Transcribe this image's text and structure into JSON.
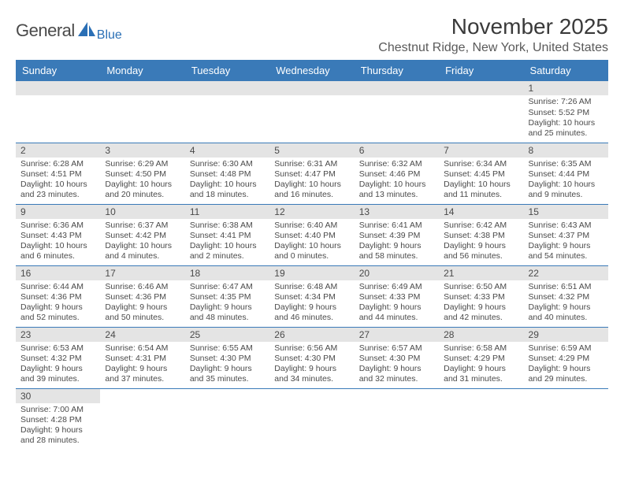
{
  "logo": {
    "word1": "General",
    "word2": "Blue"
  },
  "title": "November 2025",
  "location": "Chestnut Ridge, New York, United States",
  "colors": {
    "header_bg": "#3a7ab8",
    "header_fg": "#ffffff",
    "daynum_bg": "#e4e4e4",
    "text": "#4a4a4a",
    "row_border": "#3a7ab8",
    "logo_blue": "#2a6fb5"
  },
  "weekdays": [
    "Sunday",
    "Monday",
    "Tuesday",
    "Wednesday",
    "Thursday",
    "Friday",
    "Saturday"
  ],
  "weeks": [
    [
      null,
      null,
      null,
      null,
      null,
      null,
      {
        "n": "1",
        "sunrise": "Sunrise: 7:26 AM",
        "sunset": "Sunset: 5:52 PM",
        "daylight1": "Daylight: 10 hours",
        "daylight2": "and 25 minutes."
      }
    ],
    [
      {
        "n": "2",
        "sunrise": "Sunrise: 6:28 AM",
        "sunset": "Sunset: 4:51 PM",
        "daylight1": "Daylight: 10 hours",
        "daylight2": "and 23 minutes."
      },
      {
        "n": "3",
        "sunrise": "Sunrise: 6:29 AM",
        "sunset": "Sunset: 4:50 PM",
        "daylight1": "Daylight: 10 hours",
        "daylight2": "and 20 minutes."
      },
      {
        "n": "4",
        "sunrise": "Sunrise: 6:30 AM",
        "sunset": "Sunset: 4:48 PM",
        "daylight1": "Daylight: 10 hours",
        "daylight2": "and 18 minutes."
      },
      {
        "n": "5",
        "sunrise": "Sunrise: 6:31 AM",
        "sunset": "Sunset: 4:47 PM",
        "daylight1": "Daylight: 10 hours",
        "daylight2": "and 16 minutes."
      },
      {
        "n": "6",
        "sunrise": "Sunrise: 6:32 AM",
        "sunset": "Sunset: 4:46 PM",
        "daylight1": "Daylight: 10 hours",
        "daylight2": "and 13 minutes."
      },
      {
        "n": "7",
        "sunrise": "Sunrise: 6:34 AM",
        "sunset": "Sunset: 4:45 PM",
        "daylight1": "Daylight: 10 hours",
        "daylight2": "and 11 minutes."
      },
      {
        "n": "8",
        "sunrise": "Sunrise: 6:35 AM",
        "sunset": "Sunset: 4:44 PM",
        "daylight1": "Daylight: 10 hours",
        "daylight2": "and 9 minutes."
      }
    ],
    [
      {
        "n": "9",
        "sunrise": "Sunrise: 6:36 AM",
        "sunset": "Sunset: 4:43 PM",
        "daylight1": "Daylight: 10 hours",
        "daylight2": "and 6 minutes."
      },
      {
        "n": "10",
        "sunrise": "Sunrise: 6:37 AM",
        "sunset": "Sunset: 4:42 PM",
        "daylight1": "Daylight: 10 hours",
        "daylight2": "and 4 minutes."
      },
      {
        "n": "11",
        "sunrise": "Sunrise: 6:38 AM",
        "sunset": "Sunset: 4:41 PM",
        "daylight1": "Daylight: 10 hours",
        "daylight2": "and 2 minutes."
      },
      {
        "n": "12",
        "sunrise": "Sunrise: 6:40 AM",
        "sunset": "Sunset: 4:40 PM",
        "daylight1": "Daylight: 10 hours",
        "daylight2": "and 0 minutes."
      },
      {
        "n": "13",
        "sunrise": "Sunrise: 6:41 AM",
        "sunset": "Sunset: 4:39 PM",
        "daylight1": "Daylight: 9 hours",
        "daylight2": "and 58 minutes."
      },
      {
        "n": "14",
        "sunrise": "Sunrise: 6:42 AM",
        "sunset": "Sunset: 4:38 PM",
        "daylight1": "Daylight: 9 hours",
        "daylight2": "and 56 minutes."
      },
      {
        "n": "15",
        "sunrise": "Sunrise: 6:43 AM",
        "sunset": "Sunset: 4:37 PM",
        "daylight1": "Daylight: 9 hours",
        "daylight2": "and 54 minutes."
      }
    ],
    [
      {
        "n": "16",
        "sunrise": "Sunrise: 6:44 AM",
        "sunset": "Sunset: 4:36 PM",
        "daylight1": "Daylight: 9 hours",
        "daylight2": "and 52 minutes."
      },
      {
        "n": "17",
        "sunrise": "Sunrise: 6:46 AM",
        "sunset": "Sunset: 4:36 PM",
        "daylight1": "Daylight: 9 hours",
        "daylight2": "and 50 minutes."
      },
      {
        "n": "18",
        "sunrise": "Sunrise: 6:47 AM",
        "sunset": "Sunset: 4:35 PM",
        "daylight1": "Daylight: 9 hours",
        "daylight2": "and 48 minutes."
      },
      {
        "n": "19",
        "sunrise": "Sunrise: 6:48 AM",
        "sunset": "Sunset: 4:34 PM",
        "daylight1": "Daylight: 9 hours",
        "daylight2": "and 46 minutes."
      },
      {
        "n": "20",
        "sunrise": "Sunrise: 6:49 AM",
        "sunset": "Sunset: 4:33 PM",
        "daylight1": "Daylight: 9 hours",
        "daylight2": "and 44 minutes."
      },
      {
        "n": "21",
        "sunrise": "Sunrise: 6:50 AM",
        "sunset": "Sunset: 4:33 PM",
        "daylight1": "Daylight: 9 hours",
        "daylight2": "and 42 minutes."
      },
      {
        "n": "22",
        "sunrise": "Sunrise: 6:51 AM",
        "sunset": "Sunset: 4:32 PM",
        "daylight1": "Daylight: 9 hours",
        "daylight2": "and 40 minutes."
      }
    ],
    [
      {
        "n": "23",
        "sunrise": "Sunrise: 6:53 AM",
        "sunset": "Sunset: 4:32 PM",
        "daylight1": "Daylight: 9 hours",
        "daylight2": "and 39 minutes."
      },
      {
        "n": "24",
        "sunrise": "Sunrise: 6:54 AM",
        "sunset": "Sunset: 4:31 PM",
        "daylight1": "Daylight: 9 hours",
        "daylight2": "and 37 minutes."
      },
      {
        "n": "25",
        "sunrise": "Sunrise: 6:55 AM",
        "sunset": "Sunset: 4:30 PM",
        "daylight1": "Daylight: 9 hours",
        "daylight2": "and 35 minutes."
      },
      {
        "n": "26",
        "sunrise": "Sunrise: 6:56 AM",
        "sunset": "Sunset: 4:30 PM",
        "daylight1": "Daylight: 9 hours",
        "daylight2": "and 34 minutes."
      },
      {
        "n": "27",
        "sunrise": "Sunrise: 6:57 AM",
        "sunset": "Sunset: 4:30 PM",
        "daylight1": "Daylight: 9 hours",
        "daylight2": "and 32 minutes."
      },
      {
        "n": "28",
        "sunrise": "Sunrise: 6:58 AM",
        "sunset": "Sunset: 4:29 PM",
        "daylight1": "Daylight: 9 hours",
        "daylight2": "and 31 minutes."
      },
      {
        "n": "29",
        "sunrise": "Sunrise: 6:59 AM",
        "sunset": "Sunset: 4:29 PM",
        "daylight1": "Daylight: 9 hours",
        "daylight2": "and 29 minutes."
      }
    ],
    [
      {
        "n": "30",
        "sunrise": "Sunrise: 7:00 AM",
        "sunset": "Sunset: 4:28 PM",
        "daylight1": "Daylight: 9 hours",
        "daylight2": "and 28 minutes."
      },
      null,
      null,
      null,
      null,
      null,
      null
    ]
  ]
}
